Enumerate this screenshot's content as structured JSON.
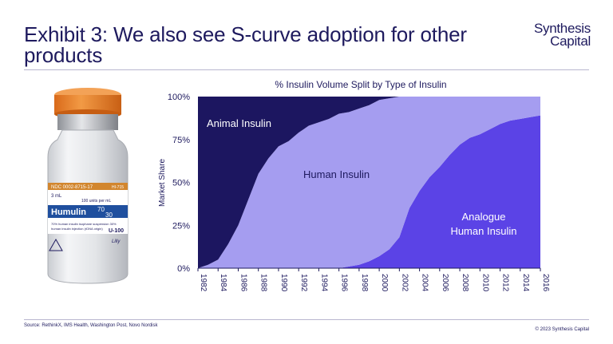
{
  "header": {
    "title": "Exhibit 3: We also see S-curve adoption for other products",
    "logo_line1": "Synthesis",
    "logo_line2": "Capital"
  },
  "vial": {
    "cap_color": "#e9812c",
    "ndc": "NDC 0002-8715-17",
    "code": "HI-715",
    "volume": "3 mL",
    "units": "100 units per mL",
    "brand": "Humulin",
    "ratio_top": "70",
    "ratio_bottom": "30",
    "desc1": "70% human insulin isophane suspension 30%",
    "desc2": "human insulin injection (rDNA origin)",
    "strength": "U-100",
    "maker": "Lilly"
  },
  "chart_data": {
    "type": "area",
    "stacked": true,
    "title": "% Insulin Volume Split by Type of Insulin",
    "ylabel": "Market Share",
    "xlabel": "",
    "ylim": [
      0,
      100
    ],
    "xlim": [
      1982,
      2016
    ],
    "y_ticks": [
      "0%",
      "25%",
      "50%",
      "75%",
      "100%"
    ],
    "x_ticks": [
      "1982",
      "1984",
      "1986",
      "1988",
      "1990",
      "1992",
      "1994",
      "1996",
      "1998",
      "2000",
      "2002",
      "2004",
      "2006",
      "2008",
      "2010",
      "2012",
      "2014",
      "2016"
    ],
    "x": [
      1982,
      1983,
      1984,
      1985,
      1986,
      1987,
      1988,
      1989,
      1990,
      1991,
      1992,
      1993,
      1994,
      1995,
      1996,
      1997,
      1998,
      1999,
      2000,
      2001,
      2002,
      2003,
      2004,
      2005,
      2006,
      2007,
      2008,
      2009,
      2010,
      2011,
      2012,
      2013,
      2014,
      2015,
      2016
    ],
    "series": [
      {
        "name": "Analogue Human Insulin",
        "color": "#5b43e6",
        "values": [
          0,
          0,
          0,
          0,
          0,
          0,
          0,
          0,
          0,
          0,
          0,
          0,
          0,
          0,
          0,
          1,
          2,
          4,
          7,
          11,
          18,
          35,
          45,
          53,
          59,
          66,
          72,
          76,
          78,
          81,
          84,
          86,
          87,
          88,
          89
        ]
      },
      {
        "name": "Human Insulin",
        "color": "#a59df0",
        "values": [
          0,
          2,
          5,
          14,
          25,
          40,
          55,
          64,
          71,
          74,
          79,
          83,
          85,
          87,
          90,
          90,
          91,
          91,
          91,
          88,
          82,
          65,
          55,
          47,
          41,
          34,
          28,
          24,
          22,
          19,
          16,
          14,
          13,
          12,
          11
        ]
      },
      {
        "name": "Animal Insulin",
        "color": "#1c1660",
        "values": [
          100,
          98,
          95,
          86,
          75,
          60,
          45,
          36,
          29,
          26,
          21,
          17,
          15,
          13,
          10,
          9,
          7,
          5,
          2,
          1,
          0,
          0,
          0,
          0,
          0,
          0,
          0,
          0,
          0,
          0,
          0,
          0,
          0,
          0,
          0
        ]
      }
    ],
    "labels": {
      "animal": "Animal Insulin",
      "human": "Human Insulin",
      "analogue_1": "Analogue",
      "analogue_2": "Human Insulin"
    }
  },
  "footer": {
    "source": "Source: RethinkX, IMS Health, Washington Post, Novo Nordisk",
    "copyright": "© 2023 Synthesis Capital"
  }
}
